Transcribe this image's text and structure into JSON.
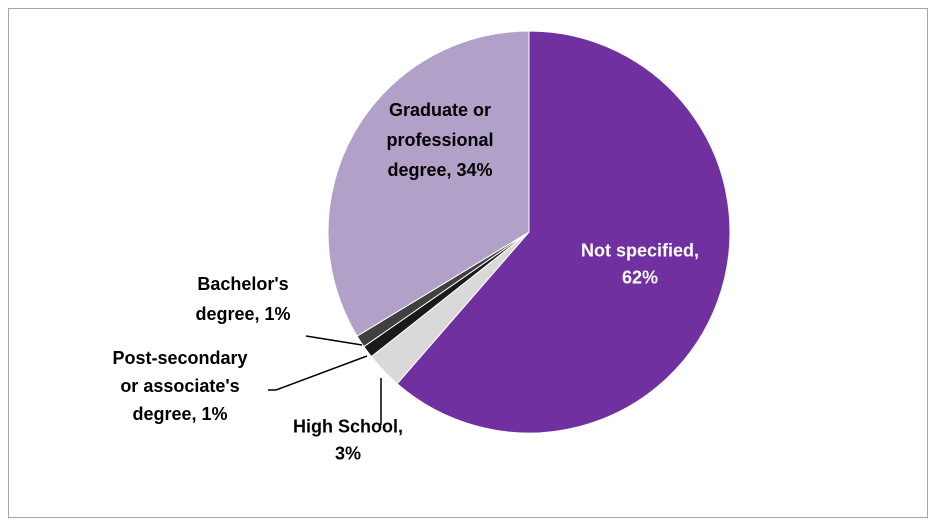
{
  "chart_data": {
    "type": "pie",
    "title": "",
    "slices": [
      {
        "name": "Not specified",
        "value": 62,
        "label_lines": [
          "Not specified,",
          "62%"
        ],
        "color": "#7030a0",
        "label_color": "#ffffff"
      },
      {
        "name": "High School",
        "value": 3,
        "label_lines": [
          "High School,",
          "3%"
        ],
        "color": "#d9d9d9",
        "label_color": "#000000"
      },
      {
        "name": "Post-secondary or associate's degree",
        "value": 1,
        "label_lines": [
          "Post-secondary",
          "or associate's",
          "degree, 1%"
        ],
        "color": "#1a1a1a",
        "label_color": "#000000"
      },
      {
        "name": "Bachelor's degree",
        "value": 1,
        "label_lines": [
          "Bachelor's",
          "degree, 1%"
        ],
        "color": "#404040",
        "label_color": "#000000"
      },
      {
        "name": "Graduate or professional degree",
        "value": 34,
        "label_lines": [
          "Graduate or",
          "professional",
          "degree, 34%"
        ],
        "color": "#b1a0c7",
        "label_color": "#000000"
      }
    ],
    "start_angle_deg": 0,
    "direction": "clockwise",
    "legend": "none",
    "leader_line_color": "#000000"
  }
}
